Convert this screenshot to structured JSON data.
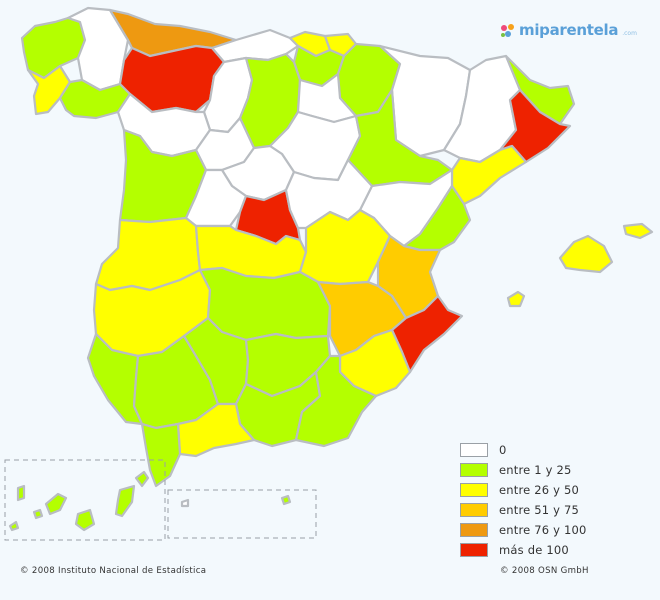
{
  "brand": {
    "name": "miparentela",
    "suffix": ".com",
    "colors": [
      "#ef4a7a",
      "#f7a11a",
      "#5aa0d8",
      "#7ac142"
    ]
  },
  "legend": {
    "items": [
      {
        "label": "0",
        "color": "#ffffff"
      },
      {
        "label": "entre 1 y 25",
        "color": "#b4ff00"
      },
      {
        "label": "entre 26 y 50",
        "color": "#ffff00"
      },
      {
        "label": "entre 51 y 75",
        "color": "#ffcc00"
      },
      {
        "label": "entre 76 y 100",
        "color": "#ee9911"
      },
      {
        "label": "más de 100",
        "color": "#ee2200"
      }
    ]
  },
  "footer": {
    "left": "© 2008 Instituto Nacional de Estadística",
    "right": "© 2008 OSN GmbH"
  }
}
